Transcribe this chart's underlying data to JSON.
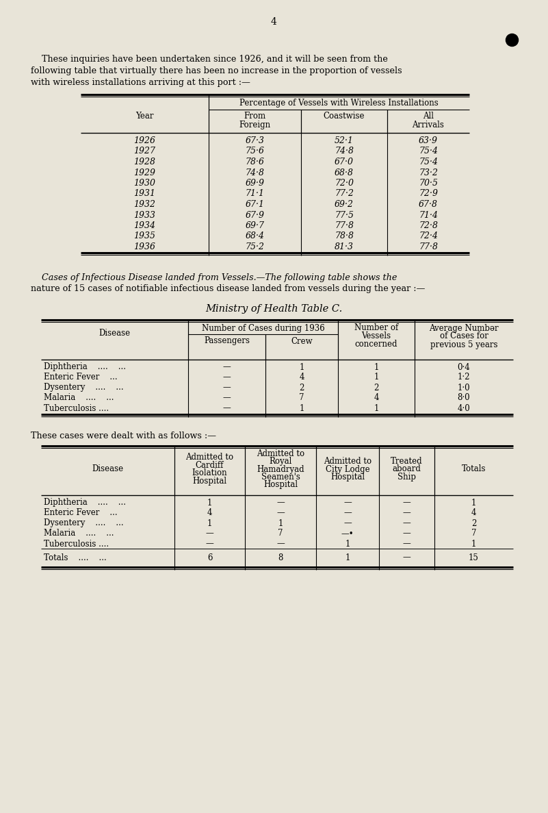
{
  "bg_color": "#e8e4d8",
  "page_number": "4",
  "intro_text_line1": "    These inquiries have been undertaken since 1926, and it will be seen from the",
  "intro_text_line2": "following table that virtually there has been no increase in the proportion of vessels",
  "intro_text_line3": "with wireless installations arriving at this port :—",
  "table1": {
    "col_header_main": "Percentage of Vessels with Wireless Installations",
    "col_headers": [
      "Year",
      "From\nForeign",
      "Coastwise",
      "All\nArrivals"
    ],
    "rows": [
      [
        "1926",
        "67·3",
        "52·1",
        "63·9"
      ],
      [
        "1927",
        "75·6",
        "74·8",
        "75·4"
      ],
      [
        "1928",
        "78·6",
        "67·0",
        "75·4"
      ],
      [
        "1929",
        "74·8",
        "68·8",
        "73·2"
      ],
      [
        "1930",
        "69·9",
        "72·0",
        "70·5"
      ],
      [
        "1931",
        "71·1",
        "77·2",
        "72·9"
      ],
      [
        "1932",
        "67·1",
        "69·2",
        "67·8"
      ],
      [
        "1933",
        "67·9",
        "77·5",
        "71·4"
      ],
      [
        "1934",
        "69·7",
        "77·8",
        "72·8"
      ],
      [
        "1935",
        "68·4",
        "78·8",
        "72·4"
      ],
      [
        "1936",
        "75·2",
        "81·3",
        "77·8"
      ]
    ]
  },
  "infectious_intro_line1": "    Cases of Infectious Disease landed from Vessels.—The following table shows the",
  "infectious_intro_line2": "nature of 15 cases of notifiable infectious disease landed from vessels during the year :—",
  "table2_title": "Ministry of Health Table C.",
  "table2": {
    "rows": [
      [
        "Diphtheria    ....    ...",
        "—",
        "1",
        "1",
        "0·4"
      ],
      [
        "Enteric Fever    ...",
        "—",
        "4",
        "1",
        "1·2"
      ],
      [
        "Dysentery    ....    ...",
        "—",
        "2",
        "2",
        "1·0"
      ],
      [
        "Malaria    ....    ...",
        "—",
        "7",
        "4",
        "8·0"
      ],
      [
        "Tuberculosis ....",
        "—",
        "1",
        "1",
        "4·0"
      ]
    ]
  },
  "dealt_with_intro": "These cases were dealt with as follows :—",
  "table3": {
    "col_headers": [
      "Disease",
      "Admitted to\nCardiff\nIsolation\nHospital",
      "Admitted to\nRoyal\nHamadryad\nSeamen's\nHospital",
      "Admitted to\nCity Lodge\nHospital",
      "Treated\naboard\nShip",
      "Totals"
    ],
    "rows": [
      [
        "Diphtheria    ....    ...",
        "1",
        "—",
        "—",
        "—",
        "1"
      ],
      [
        "Enteric Fever    ...",
        "4",
        "—",
        "—",
        "—",
        "4"
      ],
      [
        "Dysentery    ....    ...",
        "1",
        "1",
        "—",
        "—",
        "2"
      ],
      [
        "Malaria    ....    ...",
        "—",
        "7",
        "—•",
        "—",
        "7"
      ],
      [
        "Tuberculosis ....",
        "—",
        "—",
        "1",
        "—",
        "1"
      ]
    ],
    "totals_row": [
      "Totals    ....    ...",
      "6",
      "8",
      "1",
      "—",
      "15"
    ]
  }
}
